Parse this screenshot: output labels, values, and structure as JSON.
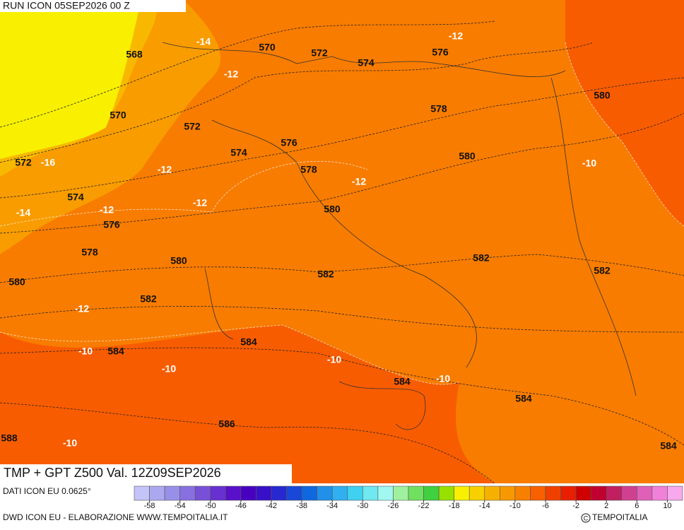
{
  "header": {
    "run": "RUN ICON 05SEP2026 00 Z"
  },
  "map": {
    "height_labels": [
      568,
      570,
      572,
      574,
      576,
      570,
      572,
      578,
      580,
      574,
      576,
      578,
      580,
      572,
      574,
      576,
      580,
      578,
      580,
      582,
      580,
      582,
      582,
      582,
      584,
      584,
      584,
      584,
      586,
      588,
      584
    ],
    "temp_labels": [
      -12,
      -14,
      -12,
      -16,
      -12,
      -10,
      -12,
      -14,
      -12,
      -12,
      -12,
      -10,
      -10,
      -10,
      -10,
      -10
    ]
  },
  "footer": {
    "title": "TMP + GPT Z500 Val. 12Z09SEP2026",
    "source": "DATI ICON EU 0.0625°",
    "credit": "DWD ICON EU - ELABORAZIONE WWW.TEMPOITALIA.IT",
    "copyright": "TEMPOITALIA"
  },
  "colorbar": {
    "range": [
      -60,
      12
    ],
    "ticks": [
      -58,
      -54,
      -50,
      -46,
      -42,
      -38,
      -34,
      -30,
      -26,
      -22,
      -18,
      -14,
      -10,
      -6,
      -2,
      2,
      6,
      10
    ],
    "colors": [
      "#c4c4f8",
      "#aca8f0",
      "#9890e8",
      "#8870e0",
      "#7850d8",
      "#6830d0",
      "#5810c8",
      "#4800c0",
      "#3810c8",
      "#2828d0",
      "#1848d8",
      "#1068e0",
      "#2090e8",
      "#30b0f0",
      "#40d0f0",
      "#70e8f0",
      "#a0f8f0",
      "#a0f0a0",
      "#70e060",
      "#40d040",
      "#98e000",
      "#f8f000",
      "#f8d000",
      "#f8b000",
      "#f89800",
      "#f88000",
      "#f86000",
      "#f04000",
      "#e82000",
      "#d00000",
      "#c00030",
      "#c02060",
      "#d04090",
      "#e060b8",
      "#f080d8",
      "#f8a8ec"
    ]
  }
}
